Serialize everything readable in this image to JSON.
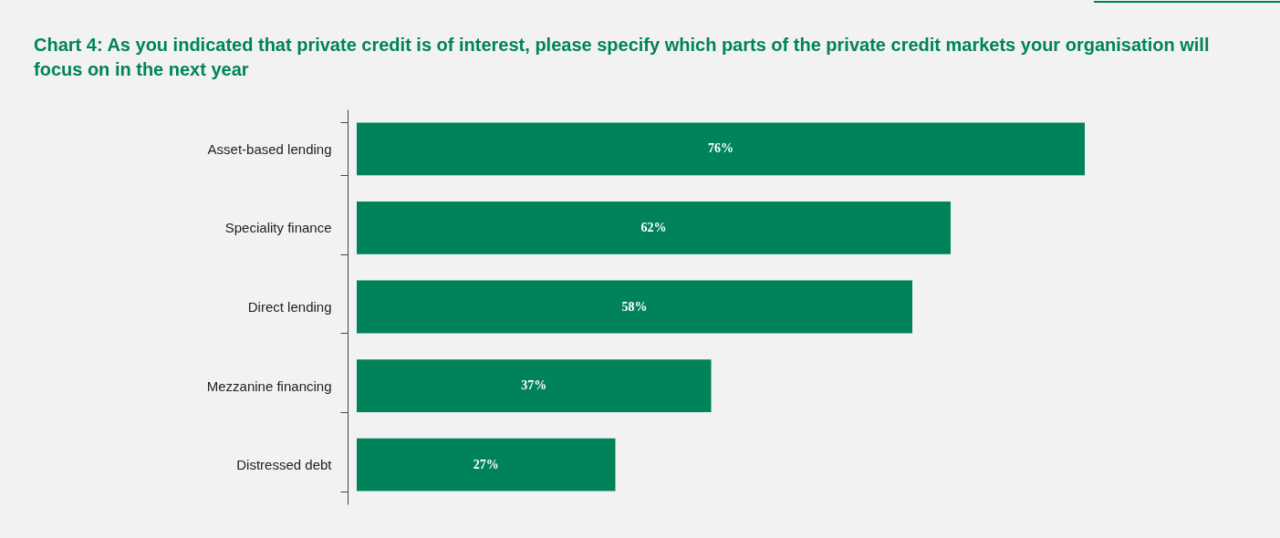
{
  "chart_data": {
    "type": "bar",
    "orientation": "horizontal",
    "title": "Chart 4: As you indicated that private credit is of interest, please specify which parts of the private credit markets your organisation will focus on in the next year",
    "categories": [
      "Asset-based lending",
      "Speciality finance",
      "Direct lending",
      "Mezzanine financing",
      "Distressed debt"
    ],
    "values": [
      76,
      62,
      58,
      37,
      27
    ],
    "value_labels": [
      "76%",
      "62%",
      "58%",
      "37%",
      "27%"
    ],
    "color": "#00835a",
    "tick_labels": "y"
  }
}
